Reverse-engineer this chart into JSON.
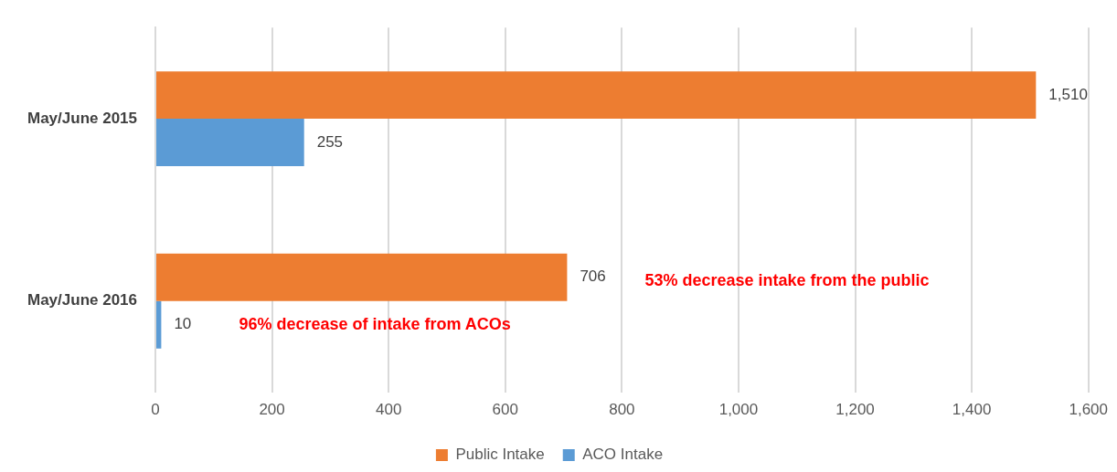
{
  "chart_data": {
    "type": "bar",
    "orientation": "horizontal",
    "categories": [
      "May/June 2015",
      "May/June 2016"
    ],
    "series": [
      {
        "name": "Public Intake",
        "color": "#ed7d31",
        "values": [
          1510,
          706
        ],
        "value_labels": [
          "1,510",
          "706"
        ]
      },
      {
        "name": "ACO Intake",
        "color": "#5b9bd5",
        "values": [
          255,
          10
        ],
        "value_labels": [
          "255",
          "10"
        ]
      }
    ],
    "xlim": [
      0,
      1600
    ],
    "xticks": [
      0,
      200,
      400,
      600,
      800,
      {
        "value": 1000,
        "label": "1,000"
      },
      {
        "value": 1200,
        "label": "1,200"
      },
      {
        "value": 1400,
        "label": "1,400"
      },
      {
        "value": 1600,
        "label": "1,600"
      }
    ],
    "grid": "x",
    "legend": "bottom",
    "annotations": [
      "53% decrease intake from the public",
      "96% decrease of intake from ACOs"
    ]
  }
}
